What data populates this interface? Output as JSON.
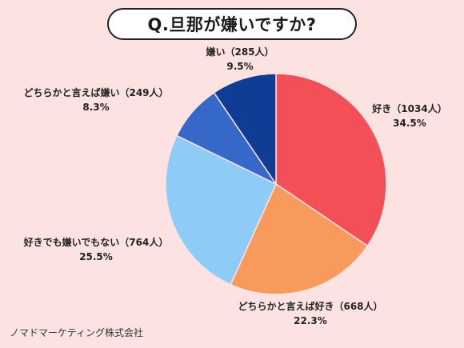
{
  "title": "Q.旦那が嫌いですか?",
  "footer": "ノマドマーケティング株式会社",
  "colors": {
    "background": "#fde2e2",
    "like": "#f25056",
    "somewhat_like": "#f79a5b",
    "neither": "#8ecbf7",
    "somewhat_dislike": "#3568c8",
    "dislike": "#0f3d96"
  },
  "chart_data": {
    "type": "pie",
    "slices": [
      {
        "label": "好き（1034人）",
        "percent_label": "34.5%",
        "value": 34.5,
        "count": 1034,
        "color": "#f25056"
      },
      {
        "label": "どちらかと言えば好き（668人）",
        "percent_label": "22.3%",
        "value": 22.3,
        "count": 668,
        "color": "#f79a5b"
      },
      {
        "label": "好きでも嫌いでもない（764人）",
        "percent_label": "25.5%",
        "value": 25.5,
        "count": 764,
        "color": "#8ecbf7"
      },
      {
        "label": "どちらかと言えば嫌い（249人）",
        "percent_label": "8.3%",
        "value": 8.3,
        "count": 249,
        "color": "#3568c8"
      },
      {
        "label": "嫌い（285人）",
        "percent_label": "9.5%",
        "value": 9.5,
        "count": 285,
        "color": "#0f3d96"
      }
    ]
  }
}
